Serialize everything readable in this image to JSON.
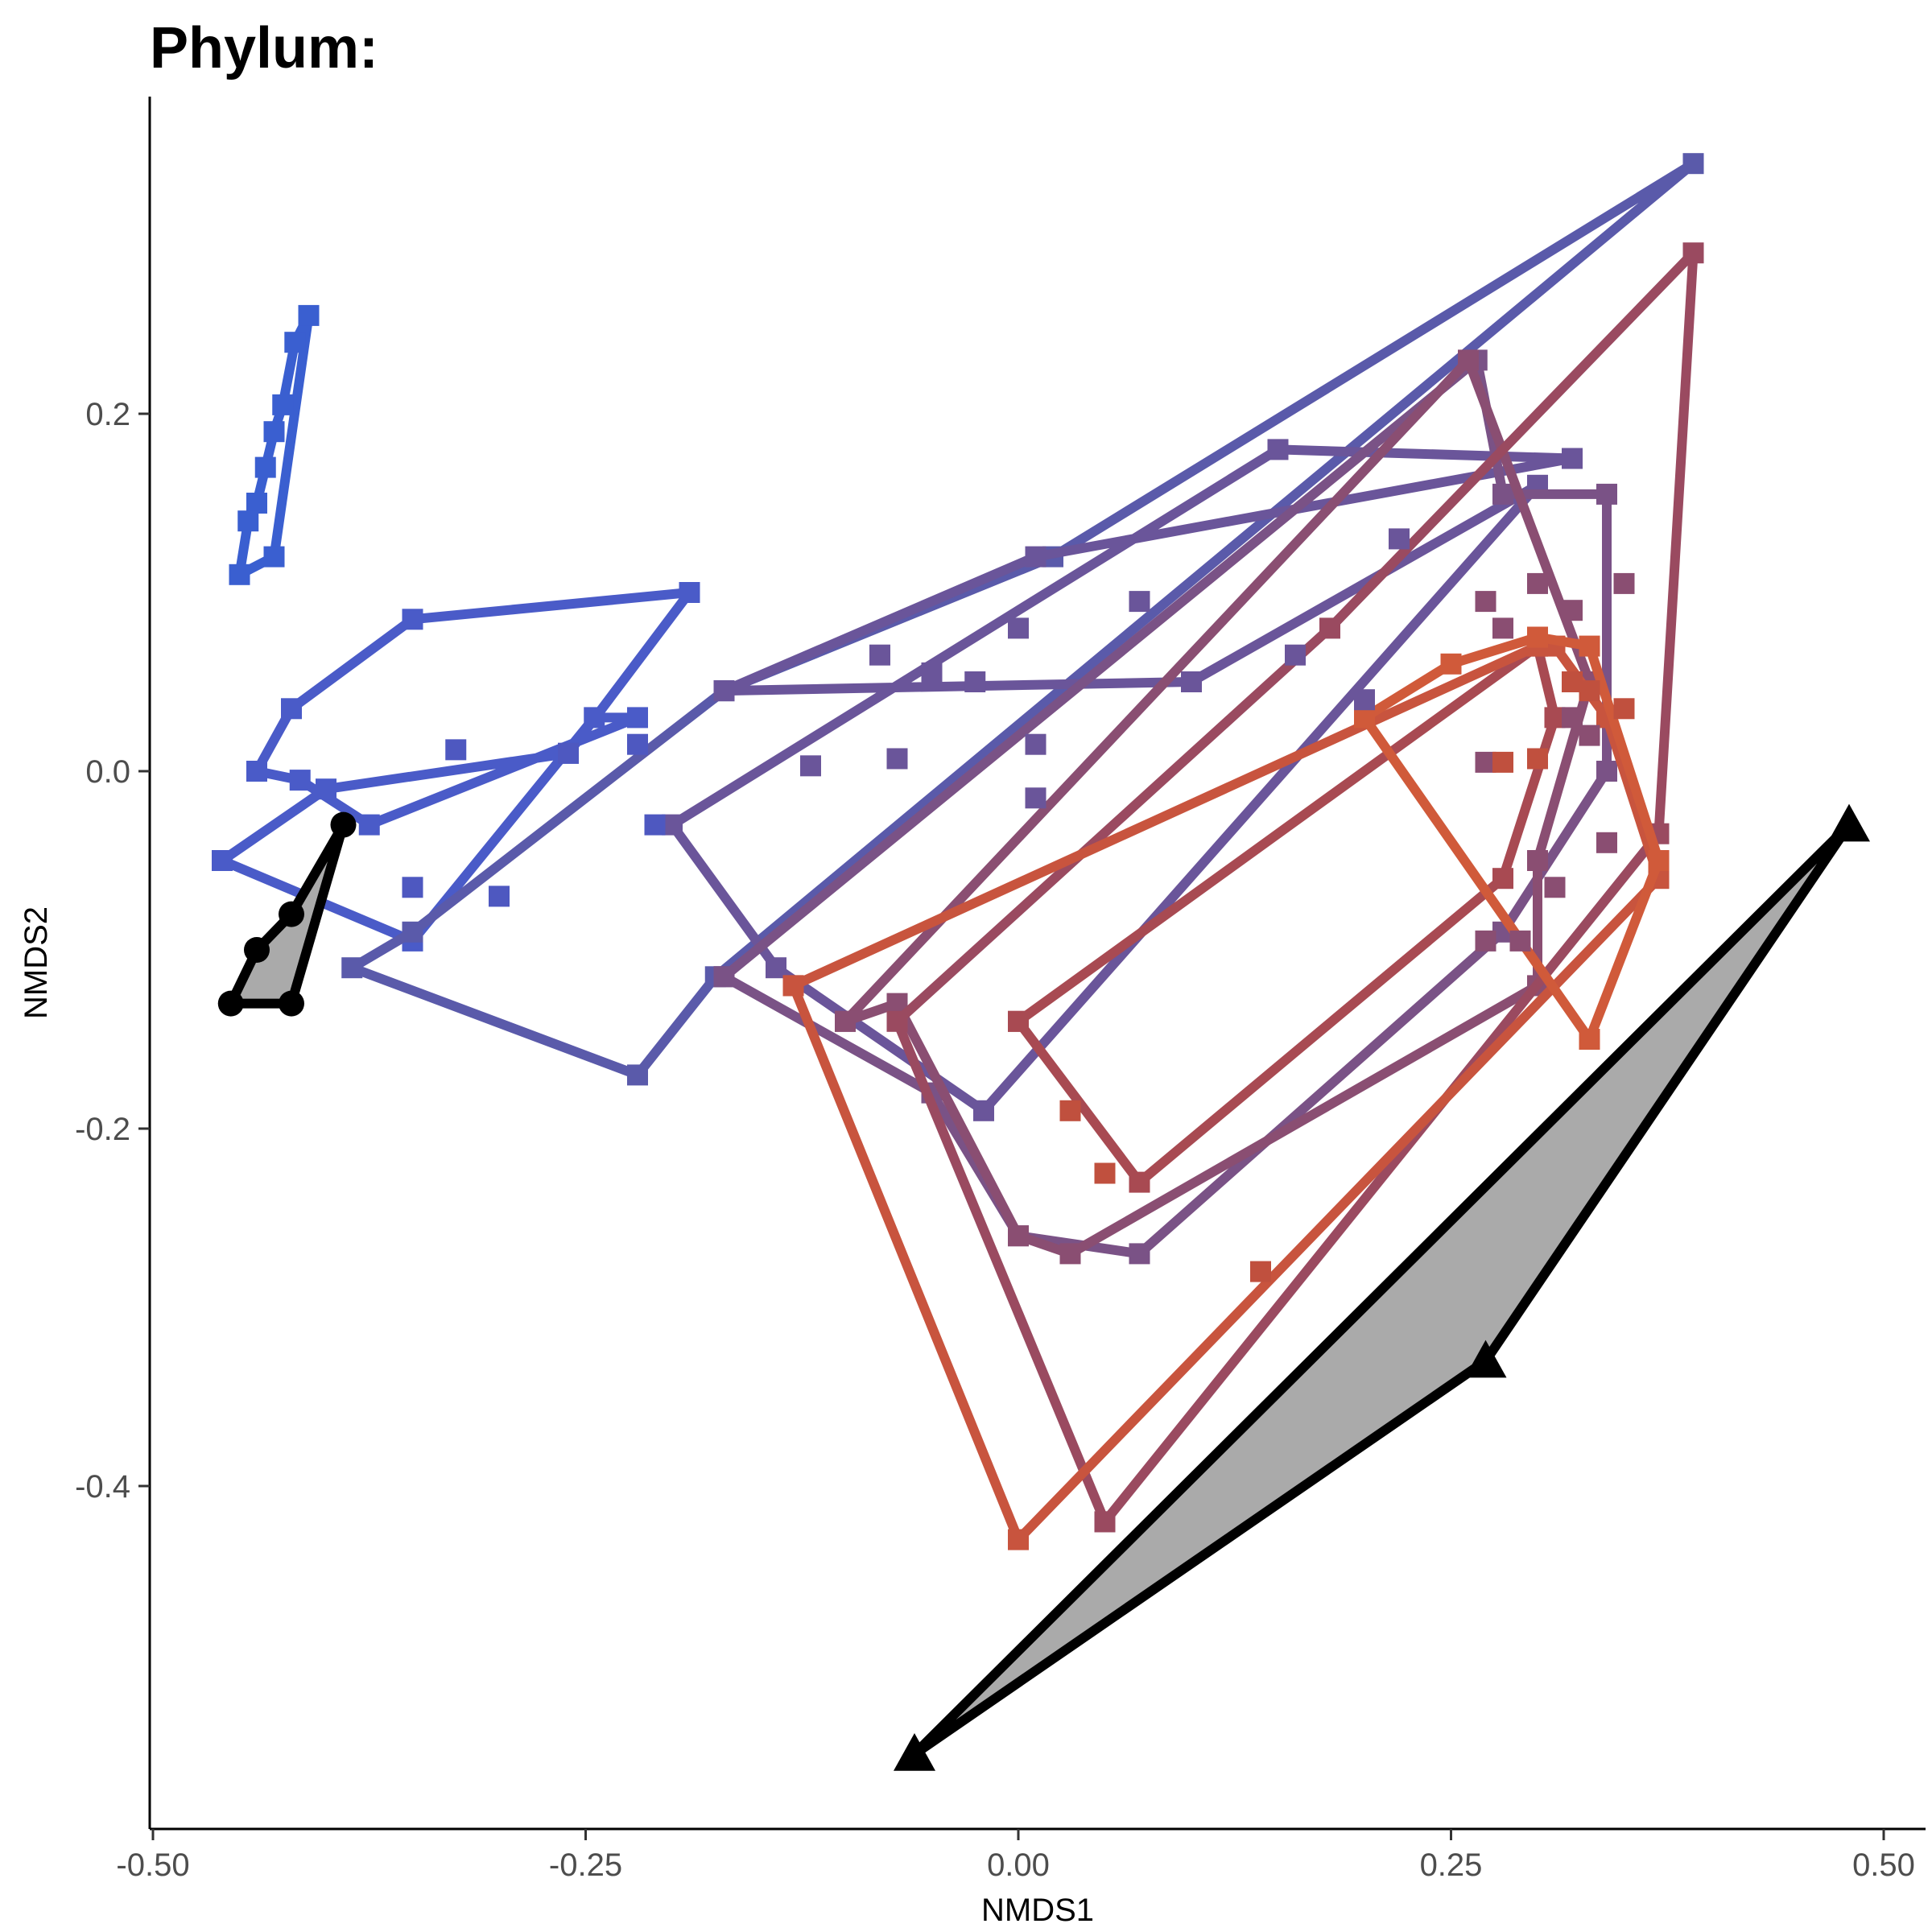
{
  "chart_data": {
    "type": "scatter",
    "title": "Phylum:",
    "xlabel": "NMDS1",
    "ylabel": "NMDS2",
    "xlim": [
      -0.5,
      0.5
    ],
    "ylim": [
      -0.58,
      0.38
    ],
    "x_ticks": [
      -0.5,
      -0.25,
      0.0,
      0.25,
      0.5
    ],
    "x_tick_labels": [
      "-0.50",
      "-0.25",
      "0.00",
      "0.25",
      "0.50"
    ],
    "y_ticks": [
      -0.4,
      -0.2,
      0.0,
      0.2
    ],
    "y_tick_labels": [
      "-0.4",
      "-0.2",
      "0.0",
      "0.2"
    ],
    "grid": false,
    "legend": "none",
    "hulls": [
      {
        "color": "#3a5fd0",
        "fill": "none",
        "marker": "square",
        "points": [
          [
            -0.45,
            0.11
          ],
          [
            -0.43,
            0.12
          ],
          [
            -0.41,
            0.255
          ],
          [
            -0.418,
            0.24
          ],
          [
            -0.425,
            0.205
          ],
          [
            -0.43,
            0.19
          ],
          [
            -0.435,
            0.17
          ],
          [
            -0.44,
            0.15
          ],
          [
            -0.445,
            0.14
          ]
        ]
      },
      {
        "color": "#4a5bc8",
        "fill": "none",
        "marker": "square",
        "points": [
          [
            -0.46,
            -0.05
          ],
          [
            -0.35,
            -0.095
          ],
          [
            -0.245,
            0.03
          ],
          [
            -0.22,
            0.03
          ],
          [
            -0.375,
            -0.03
          ],
          [
            -0.415,
            -0.005
          ],
          [
            -0.44,
            0.0
          ],
          [
            -0.42,
            0.035
          ],
          [
            -0.35,
            0.085
          ],
          [
            -0.19,
            0.1
          ],
          [
            -0.26,
            0.01
          ],
          [
            -0.4,
            -0.01
          ]
        ]
      },
      {
        "color": "#5a5aaa",
        "fill": "none",
        "marker": "square",
        "points": [
          [
            -0.385,
            -0.11
          ],
          [
            -0.22,
            -0.17
          ],
          [
            -0.175,
            -0.115
          ],
          [
            0.39,
            0.34
          ],
          [
            0.02,
            0.12
          ],
          [
            -0.17,
            0.045
          ],
          [
            -0.35,
            -0.09
          ]
        ]
      },
      {
        "color": "#6a559a",
        "fill": "none",
        "marker": "square",
        "points": [
          [
            -0.17,
            0.045
          ],
          [
            0.01,
            0.12
          ],
          [
            0.32,
            0.175
          ],
          [
            0.15,
            0.18
          ],
          [
            -0.2,
            -0.03
          ],
          [
            -0.14,
            -0.11
          ],
          [
            -0.02,
            -0.19
          ],
          [
            0.3,
            0.16
          ],
          [
            0.1,
            0.05
          ],
          [
            -0.17,
            0.045
          ]
        ]
      },
      {
        "color": "#7a5286",
        "fill": "none",
        "marker": "square",
        "points": [
          [
            -0.17,
            -0.115
          ],
          [
            0.265,
            0.23
          ],
          [
            0.28,
            0.155
          ],
          [
            0.34,
            0.155
          ],
          [
            0.34,
            0.0
          ],
          [
            0.28,
            -0.09
          ],
          [
            0.07,
            -0.27
          ],
          [
            0.0,
            -0.26
          ],
          [
            -0.05,
            -0.18
          ],
          [
            -0.17,
            -0.115
          ]
        ]
      },
      {
        "color": "#8a4e72",
        "fill": "none",
        "marker": "square",
        "points": [
          [
            -0.1,
            -0.14
          ],
          [
            0.26,
            0.23
          ],
          [
            0.33,
            0.05
          ],
          [
            0.3,
            -0.05
          ],
          [
            0.3,
            -0.12
          ],
          [
            0.03,
            -0.27
          ],
          [
            0.0,
            -0.26
          ],
          [
            -0.07,
            -0.13
          ],
          [
            -0.1,
            -0.14
          ]
        ]
      },
      {
        "color": "#9a4a60",
        "fill": "none",
        "marker": "square",
        "points": [
          [
            0.05,
            -0.42
          ],
          [
            0.37,
            -0.035
          ],
          [
            0.39,
            0.29
          ],
          [
            0.18,
            0.08
          ],
          [
            -0.07,
            -0.14
          ],
          [
            0.05,
            -0.42
          ]
        ]
      },
      {
        "color": "#a84a52",
        "fill": "none",
        "marker": "square",
        "points": [
          [
            0.0,
            -0.14
          ],
          [
            0.3,
            0.07
          ],
          [
            0.31,
            0.03
          ],
          [
            0.28,
            -0.06
          ],
          [
            0.07,
            -0.23
          ],
          [
            0.0,
            -0.14
          ]
        ]
      },
      {
        "color": "#c8543e",
        "fill": "none",
        "marker": "square",
        "points": [
          [
            -0.13,
            -0.12
          ],
          [
            0.0,
            -0.43
          ],
          [
            0.37,
            -0.06
          ],
          [
            0.34,
            0.03
          ],
          [
            0.31,
            0.07
          ],
          [
            0.3,
            0.07
          ],
          [
            -0.13,
            -0.12
          ]
        ]
      },
      {
        "color": "#d05a3a",
        "fill": "none",
        "marker": "square",
        "points": [
          [
            0.33,
            -0.15
          ],
          [
            0.37,
            -0.05
          ],
          [
            0.33,
            0.07
          ],
          [
            0.3,
            0.075
          ],
          [
            0.25,
            0.06
          ],
          [
            0.2,
            0.03
          ],
          [
            0.33,
            -0.15
          ]
        ]
      },
      {
        "color": "#000000",
        "fill": "#aaaaaa",
        "marker": "circle",
        "points": [
          [
            -0.455,
            -0.13
          ],
          [
            -0.42,
            -0.13
          ],
          [
            -0.39,
            -0.03
          ],
          [
            -0.42,
            -0.08
          ],
          [
            -0.44,
            -0.1
          ]
        ]
      },
      {
        "color": "#000000",
        "fill": "#aaaaaa",
        "marker": "triangle",
        "points": [
          [
            -0.06,
            -0.55
          ],
          [
            0.27,
            -0.33
          ],
          [
            0.48,
            -0.03
          ]
        ]
      }
    ],
    "extra_points": [
      {
        "color": "#4e58c0",
        "points": [
          [
            -0.325,
            0.012
          ],
          [
            -0.26,
            0.01
          ],
          [
            -0.22,
            0.015
          ],
          [
            -0.35,
            -0.065
          ],
          [
            -0.21,
            -0.03
          ],
          [
            -0.3,
            -0.07
          ]
        ]
      },
      {
        "color": "#6a559a",
        "points": [
          [
            -0.12,
            0.003
          ],
          [
            -0.07,
            0.007
          ],
          [
            -0.05,
            0.055
          ],
          [
            -0.025,
            0.05
          ],
          [
            -0.0,
            0.08
          ],
          [
            -0.08,
            0.065
          ],
          [
            0.01,
            0.015
          ],
          [
            0.01,
            -0.015
          ],
          [
            0.07,
            0.095
          ],
          [
            0.16,
            0.065
          ],
          [
            0.22,
            0.13
          ],
          [
            0.2,
            0.04
          ]
        ]
      },
      {
        "color": "#8a4e72",
        "points": [
          [
            0.27,
            0.095
          ],
          [
            0.28,
            0.08
          ],
          [
            0.3,
            0.105
          ],
          [
            0.32,
            0.09
          ],
          [
            0.35,
            0.105
          ],
          [
            0.27,
            0.005
          ],
          [
            0.32,
            0.03
          ],
          [
            0.33,
            0.02
          ],
          [
            0.34,
            -0.04
          ],
          [
            0.27,
            -0.095
          ],
          [
            0.29,
            -0.095
          ],
          [
            0.31,
            -0.065
          ]
        ]
      },
      {
        "color": "#c0503e",
        "points": [
          [
            0.03,
            -0.19
          ],
          [
            0.05,
            -0.225
          ],
          [
            0.14,
            -0.28
          ],
          [
            0.28,
            0.005
          ],
          [
            0.3,
            0.007
          ],
          [
            0.32,
            0.05
          ],
          [
            0.33,
            0.045
          ],
          [
            0.35,
            0.035
          ]
        ]
      }
    ]
  }
}
